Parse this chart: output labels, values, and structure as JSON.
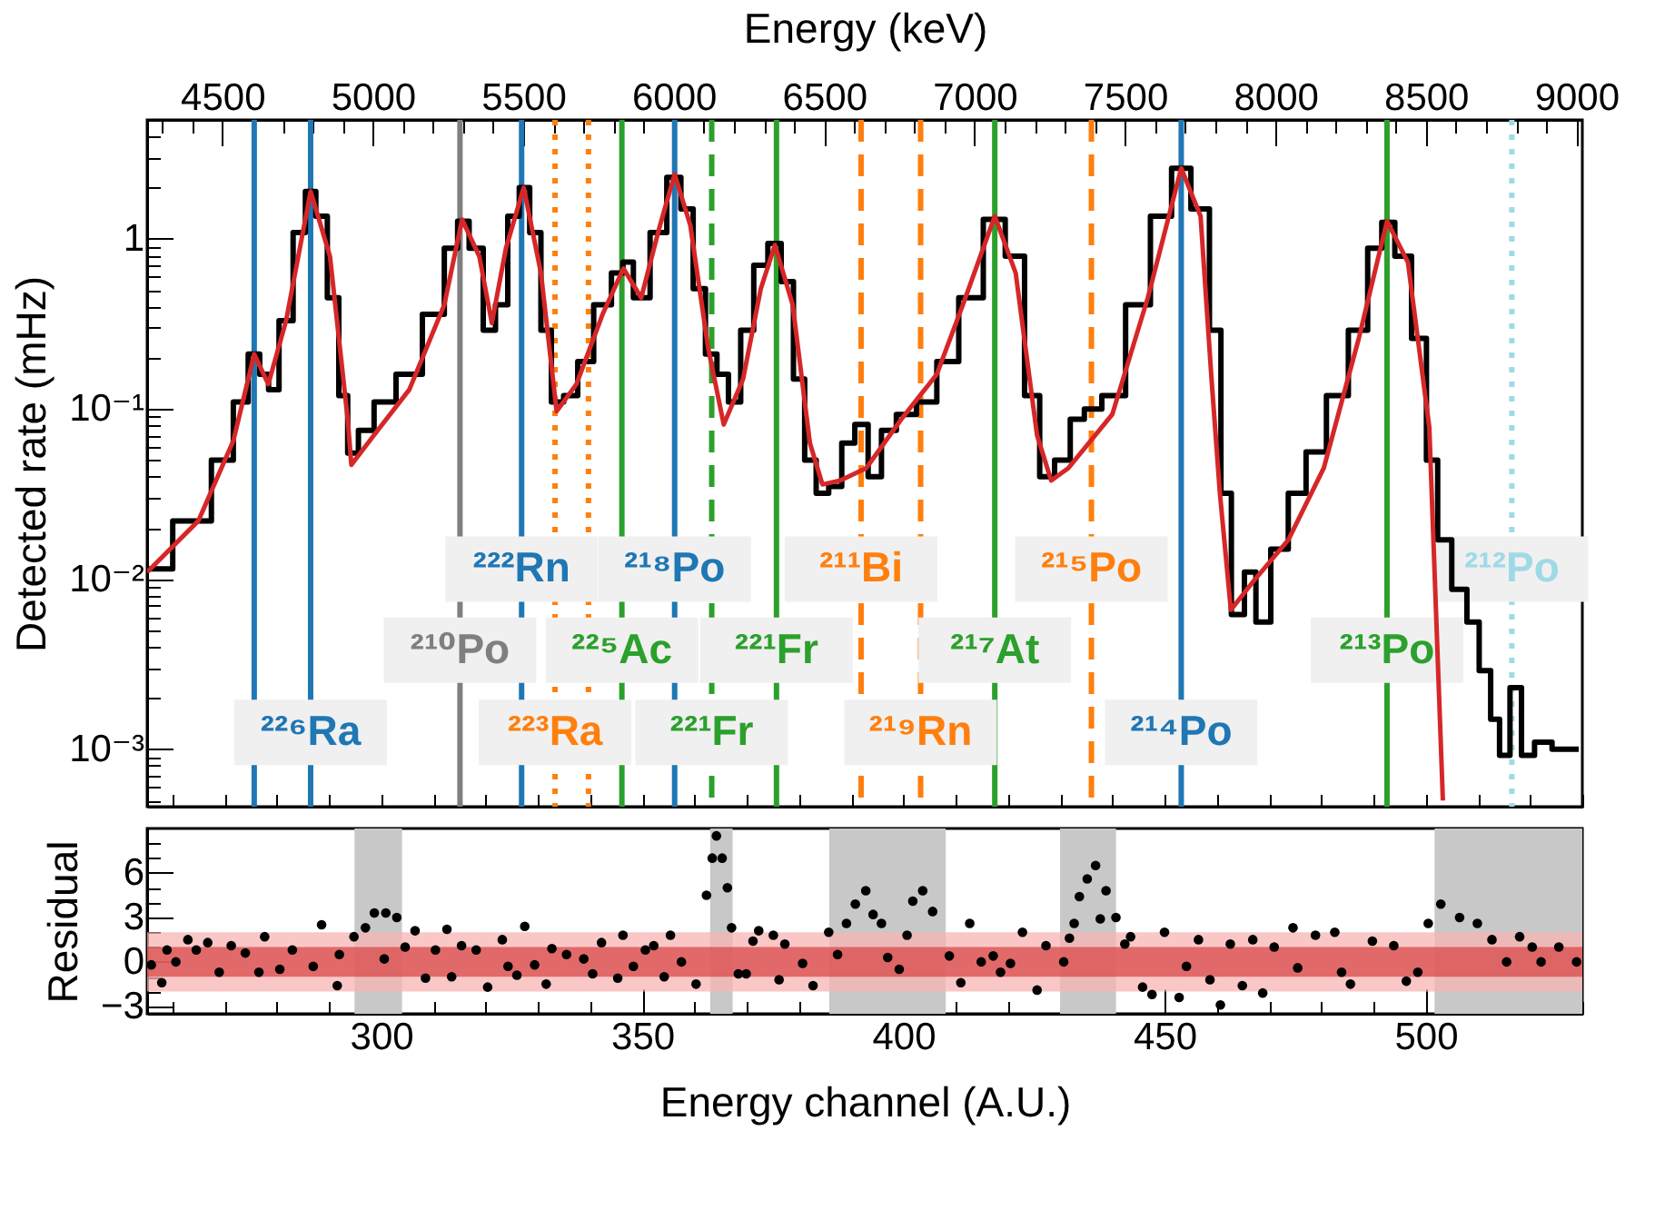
{
  "chart_data": [
    {
      "type": "step",
      "x2label": "Energy (keV)",
      "ylabel": "Detected rate (mHz)",
      "log": true,
      "tick_labels": "y",
      "xlim": [
        255.2,
        530
      ],
      "xticks": [
        {
          "value": 260,
          "label": null
        },
        {
          "value": 270,
          "label": null
        },
        {
          "value": 280,
          "label": null
        },
        {
          "value": 290,
          "label": null
        },
        {
          "value": 300,
          "label": null
        },
        {
          "value": 310,
          "label": null
        },
        {
          "value": 320,
          "label": null
        },
        {
          "value": 330,
          "label": null
        },
        {
          "value": 340,
          "label": null
        },
        {
          "value": 350,
          "label": null
        },
        {
          "value": 360,
          "label": null
        },
        {
          "value": 370,
          "label": null
        },
        {
          "value": 380,
          "label": null
        },
        {
          "value": 390,
          "label": null
        },
        {
          "value": 400,
          "label": null
        },
        {
          "value": 410,
          "label": null
        },
        {
          "value": 420,
          "label": null
        },
        {
          "value": 430,
          "label": null
        },
        {
          "value": 440,
          "label": null
        },
        {
          "value": 450,
          "label": null
        },
        {
          "value": 460,
          "label": null
        },
        {
          "value": 470,
          "label": null
        },
        {
          "value": 480,
          "label": null
        },
        {
          "value": 490,
          "label": null
        },
        {
          "value": 500,
          "label": null
        },
        {
          "value": 510,
          "label": null
        },
        {
          "value": 520,
          "label": null
        },
        {
          "value": 530,
          "label": null
        }
      ],
      "x2lim": [
        4250,
        9020
      ],
      "x2ticks": [
        {
          "value": 4300,
          "label": null
        },
        {
          "value": 4400,
          "label": null
        },
        4500,
        {
          "value": 4600,
          "label": null
        },
        {
          "value": 4700,
          "label": null
        },
        {
          "value": 4800,
          "label": null
        },
        {
          "value": 4900,
          "label": null
        },
        5000,
        {
          "value": 5100,
          "label": null
        },
        {
          "value": 5200,
          "label": null
        },
        {
          "value": 5300,
          "label": null
        },
        {
          "value": 5400,
          "label": null
        },
        5500,
        {
          "value": 5600,
          "label": null
        },
        {
          "value": 5700,
          "label": null
        },
        {
          "value": 5800,
          "label": null
        },
        {
          "value": 5900,
          "label": null
        },
        6000,
        {
          "value": 6100,
          "label": null
        },
        {
          "value": 6200,
          "label": null
        },
        {
          "value": 6300,
          "label": null
        },
        {
          "value": 6400,
          "label": null
        },
        6500,
        {
          "value": 6600,
          "label": null
        },
        {
          "value": 6700,
          "label": null
        },
        {
          "value": 6800,
          "label": null
        },
        {
          "value": 6900,
          "label": null
        },
        7000,
        {
          "value": 7100,
          "label": null
        },
        {
          "value": 7200,
          "label": null
        },
        {
          "value": 7300,
          "label": null
        },
        {
          "value": 7400,
          "label": null
        },
        7500,
        {
          "value": 7600,
          "label": null
        },
        {
          "value": 7700,
          "label": null
        },
        {
          "value": 7800,
          "label": null
        },
        {
          "value": 7900,
          "label": null
        },
        8000,
        {
          "value": 8100,
          "label": null
        },
        {
          "value": 8200,
          "label": null
        },
        {
          "value": 8300,
          "label": null
        },
        {
          "value": 8400,
          "label": null
        },
        8500,
        {
          "value": 8600,
          "label": null
        },
        {
          "value": 8700,
          "label": null
        },
        {
          "value": 8800,
          "label": null
        },
        {
          "value": 8900,
          "label": null
        },
        9000
      ],
      "ylim": [
        0.00046,
        5
      ],
      "yticks": [
        {
          "value": 0.0005,
          "label": null
        },
        {
          "value": 0.0006,
          "label": null
        },
        {
          "value": 0.0007,
          "label": null
        },
        {
          "value": 0.0008,
          "label": null
        },
        {
          "value": 0.0009,
          "label": null
        },
        {
          "value": 0.001,
          "label": "10⁻³"
        },
        {
          "value": 0.002,
          "label": null
        },
        {
          "value": 0.003,
          "label": null
        },
        {
          "value": 0.004,
          "label": null
        },
        {
          "value": 0.005,
          "label": null
        },
        {
          "value": 0.006,
          "label": null
        },
        {
          "value": 0.007,
          "label": null
        },
        {
          "value": 0.008,
          "label": null
        },
        {
          "value": 0.009,
          "label": null
        },
        {
          "value": 0.01,
          "label": "10⁻²"
        },
        {
          "value": 0.02,
          "label": null
        },
        {
          "value": 0.03,
          "label": null
        },
        {
          "value": 0.04,
          "label": null
        },
        {
          "value": 0.05,
          "label": null
        },
        {
          "value": 0.06,
          "label": null
        },
        {
          "value": 0.07,
          "label": null
        },
        {
          "value": 0.08,
          "label": null
        },
        {
          "value": 0.09,
          "label": null
        },
        {
          "value": 0.1,
          "label": "10⁻¹"
        },
        {
          "value": 0.2,
          "label": null
        },
        {
          "value": 0.3,
          "label": null
        },
        {
          "value": 0.4,
          "label": null
        },
        {
          "value": 0.5,
          "label": null
        },
        {
          "value": 0.6,
          "label": null
        },
        {
          "value": 0.7,
          "label": null
        },
        {
          "value": 0.8,
          "label": null
        },
        {
          "value": 0.9,
          "label": null
        },
        1,
        {
          "value": 2,
          "label": null
        },
        {
          "value": 3,
          "label": null
        },
        {
          "value": 4,
          "label": null
        }
      ],
      "series": [
        {
          "color": "#000000",
          "x": [
            255.2,
            265.0,
            270.0,
            273.4,
            275.7,
            277.8,
            279.1,
            281.8,
            284.5,
            286.5,
            288.5,
            290.9,
            292.9,
            294.3,
            297.0,
            300.3,
            305.4,
            310.4,
            313.8,
            315.5,
            318.2,
            320.9,
            322.9,
            325.6,
            327.3,
            329.6,
            331.6,
            333.6,
            336.3,
            339.0,
            342.4,
            345.8,
            346.8,
            349.8,
            353.2,
            356.2,
            358.6,
            360.9,
            363.3,
            365.3,
            367.7,
            370.0,
            372.7,
            375.4,
            377.8,
            380.1,
            382.1,
            384.5,
            386.9,
            389.5,
            391.9,
            394.6,
            397.0,
            400.3,
            404.7,
            408.1,
            413.1,
            417.5,
            421.5,
            424.9,
            427.3,
            430.6,
            433.3,
            436.0,
            440.0,
            445.1,
            449.5,
            453.2,
            456.9,
            460.3,
            461.3,
            464.3,
            466.3,
            468.7,
            472.0,
            475.4,
            478.8,
            483.2,
            487.2,
            490.6,
            492.6,
            495.6,
            499.0,
            501.3,
            503.3,
            506.7,
            509.1,
            511.4,
            513.5,
            514.8,
            517.5,
            519.2,
            522.5,
            525.9,
            529.3
          ],
          "values": [
            0.0115,
            0.022,
            0.05,
            0.11,
            0.21,
            0.16,
            0.13,
            0.33,
            1.09,
            1.9,
            1.36,
            0.45,
            0.12,
            0.055,
            0.075,
            0.11,
            0.16,
            0.36,
            0.88,
            1.27,
            0.88,
            0.29,
            0.41,
            1.36,
            2.0,
            1.09,
            0.29,
            0.11,
            0.12,
            0.19,
            0.41,
            0.63,
            0.73,
            0.45,
            1.09,
            2.3,
            1.5,
            0.51,
            0.21,
            0.16,
            0.11,
            0.29,
            0.7,
            0.94,
            0.56,
            0.15,
            0.05,
            0.032,
            0.035,
            0.063,
            0.081,
            0.04,
            0.075,
            0.093,
            0.11,
            0.19,
            0.45,
            1.3,
            0.79,
            0.12,
            0.04,
            0.05,
            0.087,
            0.1,
            0.12,
            0.41,
            1.36,
            2.6,
            1.5,
            0.29,
            0.032,
            0.0062,
            0.011,
            0.0056,
            0.015,
            0.032,
            0.056,
            0.12,
            0.29,
            0.88,
            1.25,
            0.79,
            0.26,
            0.05,
            0.017,
            0.0087,
            0.0056,
            0.0029,
            0.0015,
            0.00092,
            0.0023,
            0.00092,
            0.0011,
            0.001,
            0.001
          ]
        },
        {
          "type": "line",
          "color": "#d62728",
          "x": [
            255.2,
            265.0,
            271.7,
            275.7,
            278.4,
            281.8,
            286.5,
            290.2,
            293.6,
            294.3,
            298.6,
            305.4,
            312.1,
            315.5,
            318.8,
            321.2,
            323.9,
            327.3,
            330.6,
            333.6,
            337.4,
            342.4,
            346.4,
            349.8,
            353.2,
            356.2,
            359.2,
            362.6,
            365.6,
            369.3,
            372.7,
            375.4,
            378.8,
            382.1,
            384.5,
            387.9,
            392.9,
            399.6,
            406.4,
            411.4,
            417.5,
            421.5,
            425.6,
            428.3,
            431.6,
            440.0,
            446.8,
            453.2,
            456.9,
            459.0,
            460.6,
            462.7,
            467.0,
            473.7,
            480.5,
            487.2,
            492.6,
            496.6,
            500.7,
            503.3
          ],
          "values": [
            0.011,
            0.022,
            0.065,
            0.21,
            0.14,
            0.33,
            1.9,
            0.79,
            0.087,
            0.047,
            0.07,
            0.13,
            0.41,
            1.3,
            0.79,
            0.32,
            0.88,
            2.0,
            0.63,
            0.097,
            0.14,
            0.36,
            0.67,
            0.45,
            1.14,
            2.4,
            1.2,
            0.23,
            0.081,
            0.15,
            0.51,
            0.92,
            0.41,
            0.063,
            0.036,
            0.038,
            0.045,
            0.087,
            0.16,
            0.41,
            1.36,
            0.63,
            0.07,
            0.038,
            0.045,
            0.093,
            0.45,
            2.6,
            1.36,
            0.15,
            0.032,
            0.0066,
            0.0097,
            0.017,
            0.045,
            0.26,
            1.27,
            0.73,
            0.078,
            0.0005
          ]
        }
      ],
      "ref_lines": [
        {
          "axis": "x",
          "value": 275.7,
          "color": "#1f77b4",
          "line_style": "solid"
        },
        {
          "axis": "x",
          "value": 286.5,
          "color": "#1f77b4",
          "line_style": "solid",
          "label": "²²⁶Ra"
        },
        {
          "axis": "x",
          "value": 315.1,
          "color": "#7f7f7f",
          "line_style": "solid",
          "label": "²¹⁰Po"
        },
        {
          "axis": "x",
          "value": 326.9,
          "color": "#1f77b4",
          "line_style": "solid",
          "label": "²²²Rn"
        },
        {
          "axis": "x",
          "value": 333.3,
          "color": "#ff7f0e",
          "line_style": "dotted",
          "label": "²²³Ra"
        },
        {
          "axis": "x",
          "value": 339.7,
          "color": "#ff7f0e",
          "line_style": "dotted"
        },
        {
          "axis": "x",
          "value": 346.1,
          "color": "#2ca02c",
          "line_style": "solid",
          "label": "²²⁵Ac"
        },
        {
          "axis": "x",
          "value": 356.2,
          "color": "#1f77b4",
          "line_style": "solid",
          "label": "²¹⁸Po"
        },
        {
          "axis": "x",
          "value": 363.3,
          "color": "#2ca02c",
          "line_style": "dashed",
          "label": "²²¹Fr"
        },
        {
          "axis": "x",
          "value": 375.7,
          "color": "#2ca02c",
          "line_style": "solid",
          "label": "²²¹Fr"
        },
        {
          "axis": "x",
          "value": 391.9,
          "color": "#ff7f0e",
          "line_style": "dashed",
          "label": "²¹¹Bi"
        },
        {
          "axis": "x",
          "value": 403.3,
          "color": "#ff7f0e",
          "line_style": "dashed",
          "label": "²¹⁹Rn"
        },
        {
          "axis": "x",
          "value": 417.5,
          "color": "#2ca02c",
          "line_style": "solid",
          "label": "²¹⁷At"
        },
        {
          "axis": "x",
          "value": 436.0,
          "color": "#ff7f0e",
          "line_style": "dashed",
          "label": "²¹⁵Po"
        },
        {
          "axis": "x",
          "value": 453.2,
          "color": "#1f77b4",
          "line_style": "solid",
          "label": "²¹⁴Po"
        },
        {
          "axis": "x",
          "value": 492.6,
          "color": "#2ca02c",
          "line_style": "solid",
          "label": "²¹³Po"
        },
        {
          "axis": "x",
          "value": 516.5,
          "color": "#9edae5",
          "line_style": "dotted",
          "label": "²¹²Po"
        }
      ]
    },
    {
      "type": "scatter",
      "xlabel": "Energy channel (A.U.)",
      "ylabel": "Residual",
      "marker": "circle",
      "xlim": [
        255.2,
        530
      ],
      "xticks": [
        {
          "value": 260,
          "label": null
        },
        {
          "value": 270,
          "label": null
        },
        {
          "value": 280,
          "label": null
        },
        {
          "value": 290,
          "label": null
        },
        300,
        {
          "value": 310,
          "label": null
        },
        {
          "value": 320,
          "label": null
        },
        {
          "value": 330,
          "label": null
        },
        {
          "value": 340,
          "label": null
        },
        350,
        {
          "value": 360,
          "label": null
        },
        {
          "value": 370,
          "label": null
        },
        {
          "value": 380,
          "label": null
        },
        {
          "value": 390,
          "label": null
        },
        400,
        {
          "value": 410,
          "label": null
        },
        {
          "value": 420,
          "label": null
        },
        {
          "value": 430,
          "label": null
        },
        {
          "value": 440,
          "label": null
        },
        450,
        {
          "value": 460,
          "label": null
        },
        {
          "value": 470,
          "label": null
        },
        {
          "value": 480,
          "label": null
        },
        {
          "value": 490,
          "label": null
        },
        500,
        {
          "value": 510,
          "label": null
        },
        {
          "value": 520,
          "label": null
        },
        {
          "value": 530,
          "label": null
        }
      ],
      "ylim": [
        -3.5,
        9
      ],
      "yticks": [
        {
          "value": -3,
          "label": "−3"
        },
        {
          "value": -2,
          "label": null
        },
        {
          "value": -1,
          "label": null
        },
        0,
        {
          "value": 1,
          "label": null
        },
        {
          "value": 2,
          "label": null
        },
        3,
        {
          "value": 4,
          "label": null
        },
        {
          "value": 5,
          "label": null
        },
        6,
        {
          "value": 7,
          "label": null
        },
        {
          "value": 8,
          "label": null
        }
      ],
      "bands": [
        {
          "axis": "x",
          "from": 294.9,
          "to": 304.0,
          "color": "#c8c8c8"
        },
        {
          "axis": "x",
          "from": 363.0,
          "to": 367.3,
          "color": "#c8c8c8"
        },
        {
          "axis": "x",
          "from": 385.8,
          "to": 408.1,
          "color": "#c8c8c8"
        },
        {
          "axis": "x",
          "from": 430.0,
          "to": 440.7,
          "color": "#c8c8c8"
        },
        {
          "axis": "x",
          "from": 501.7,
          "to": 530,
          "color": "#c8c8c8"
        },
        {
          "axis": "y",
          "from": -2,
          "to": 2,
          "color": "#f8b4b4"
        },
        {
          "axis": "y",
          "from": -1,
          "to": 1,
          "color": "#d94a4a"
        }
      ],
      "series": [
        {
          "color": "#000000",
          "x": [
            256,
            258,
            259,
            260.7,
            263,
            264.6,
            266.8,
            269,
            271.3,
            274,
            276.6,
            277.7,
            280.6,
            283,
            287,
            288.6,
            291.6,
            292,
            294.8,
            297,
            298.7,
            300.6,
            300.9,
            303,
            304.6,
            306.5,
            308.5,
            310.4,
            312.6,
            313.5,
            315.4,
            318.2,
            320.4,
            323.2,
            324.3,
            326,
            327.5,
            329.4,
            331.6,
            332.7,
            335.5,
            338.8,
            340.5,
            342.2,
            345.3,
            346.3,
            348.3,
            350.6,
            352.2,
            354.2,
            355.4,
            357.5,
            360.3,
            362.3,
            363.4,
            364.2,
            365.3,
            366.3,
            367.1,
            368.4,
            369.9,
            371.2,
            372.3,
            375.1,
            376.2,
            377.3,
            380.7,
            382.7,
            385.7,
            387.4,
            389.1,
            390.8,
            392.8,
            394.2,
            395.8,
            397,
            399.2,
            400.7,
            401.8,
            403.7,
            405.6,
            408.8,
            411,
            412.7,
            414.9,
            417.2,
            418.6,
            420.5,
            422.8,
            425.6,
            427.3,
            430.7,
            431.8,
            432.7,
            433.7,
            435.2,
            436.8,
            437.7,
            438.8,
            440.7,
            442.4,
            443.5,
            445.8,
            447.6,
            450,
            452.8,
            454.2,
            456.5,
            458.7,
            460.7,
            462.6,
            464.9,
            466.9,
            468.8,
            471,
            474.6,
            475.5,
            478.9,
            482.6,
            483.9,
            485.6,
            489.8,
            493.9,
            496.3,
            498.5,
            500.5,
            502.9,
            506.5,
            509.9,
            512.7,
            515.5,
            518,
            520.4,
            522.1,
            525.5,
            528.9
          ],
          "values": [
            -0.2,
            -1.4,
            0.8,
            0,
            1.5,
            0.8,
            1.3,
            -0.7,
            1.1,
            0.6,
            -0.7,
            1.7,
            -0.5,
            0.8,
            -0.3,
            2.5,
            -1.6,
            0.5,
            1.7,
            2.3,
            3.3,
            0.2,
            3.3,
            3,
            1,
            2.1,
            -1.1,
            0.8,
            2.2,
            -1,
            1.1,
            0.8,
            -1.7,
            1.5,
            -0.3,
            -0.9,
            2.4,
            -0.2,
            -1.5,
            0.9,
            0.5,
            0.2,
            -0.8,
            1.3,
            -1.1,
            1.8,
            -0.3,
            0.8,
            1.1,
            -1,
            1.8,
            0,
            -1.5,
            4.5,
            7,
            8.5,
            7,
            5,
            2.3,
            -0.8,
            -0.8,
            1.4,
            2.1,
            1.8,
            -1.2,
            1.2,
            -0.1,
            -1.6,
            2,
            0.5,
            2.6,
            3.9,
            4.8,
            3.2,
            2.6,
            0.3,
            -0.5,
            1.8,
            4.1,
            4.8,
            3.4,
            0.4,
            -1.4,
            2.6,
            0,
            0.4,
            -0.7,
            -0.1,
            2,
            -1.9,
            1.1,
            0,
            1.6,
            2.6,
            4.4,
            5.6,
            6.5,
            2.9,
            4.8,
            3,
            1.2,
            1.7,
            -1.7,
            -2.2,
            2,
            -2.4,
            -0.3,
            1.5,
            -1.2,
            -2.9,
            1.2,
            -1.6,
            1.5,
            -2.1,
            1,
            2.3,
            -0.4,
            1.8,
            2,
            -0.7,
            -1.5,
            1.4,
            1.1,
            -1.3,
            -0.7,
            2.6,
            3.9,
            3,
            2.6,
            1.5,
            0,
            1.7,
            1,
            0,
            1,
            0
          ]
        }
      ]
    }
  ]
}
